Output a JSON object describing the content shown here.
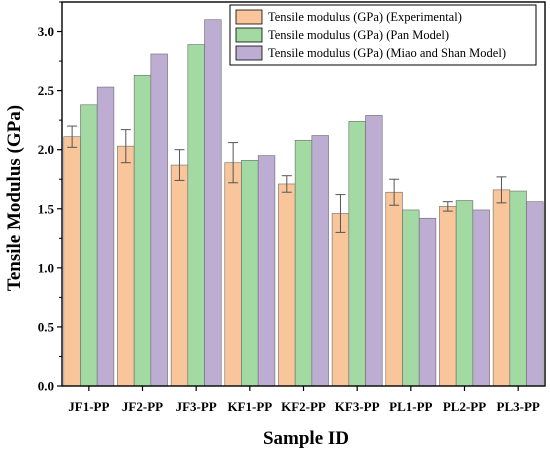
{
  "chart_data": {
    "type": "bar",
    "title": "",
    "xlabel": "Sample ID",
    "ylabel": "Tensile Modulus (GPa)",
    "ylim": [
      0,
      3.25
    ],
    "yticks": [
      "0.0",
      "0.5",
      "1.0",
      "1.5",
      "2.0",
      "2.5",
      "3.0"
    ],
    "categories": [
      "JF1-PP",
      "JF2-PP",
      "JF3-PP",
      "KF1-PP",
      "KF2-PP",
      "KF3-PP",
      "PL1-PP",
      "PL2-PP",
      "PL3-PP"
    ],
    "series": [
      {
        "name": "Tensile modulus (GPa) (Experimental)",
        "color": "#F9C59B",
        "values": [
          2.11,
          2.03,
          1.87,
          1.89,
          1.71,
          1.46,
          1.64,
          1.52,
          1.66
        ],
        "errors": [
          0.09,
          0.14,
          0.13,
          0.17,
          0.07,
          0.16,
          0.11,
          0.04,
          0.11
        ]
      },
      {
        "name": "Tensile modulus (GPa) (Pan Model)",
        "color": "#A3D9A3",
        "values": [
          2.38,
          2.63,
          2.89,
          1.91,
          2.08,
          2.24,
          1.49,
          1.57,
          1.65
        ]
      },
      {
        "name": "Tensile modulus (GPa) (Miao and Shan Model)",
        "color": "#BDADD3",
        "values": [
          2.53,
          2.81,
          3.1,
          1.95,
          2.12,
          2.29,
          1.42,
          1.49,
          1.56
        ]
      }
    ],
    "legend_position": "top-right",
    "grid": false
  }
}
